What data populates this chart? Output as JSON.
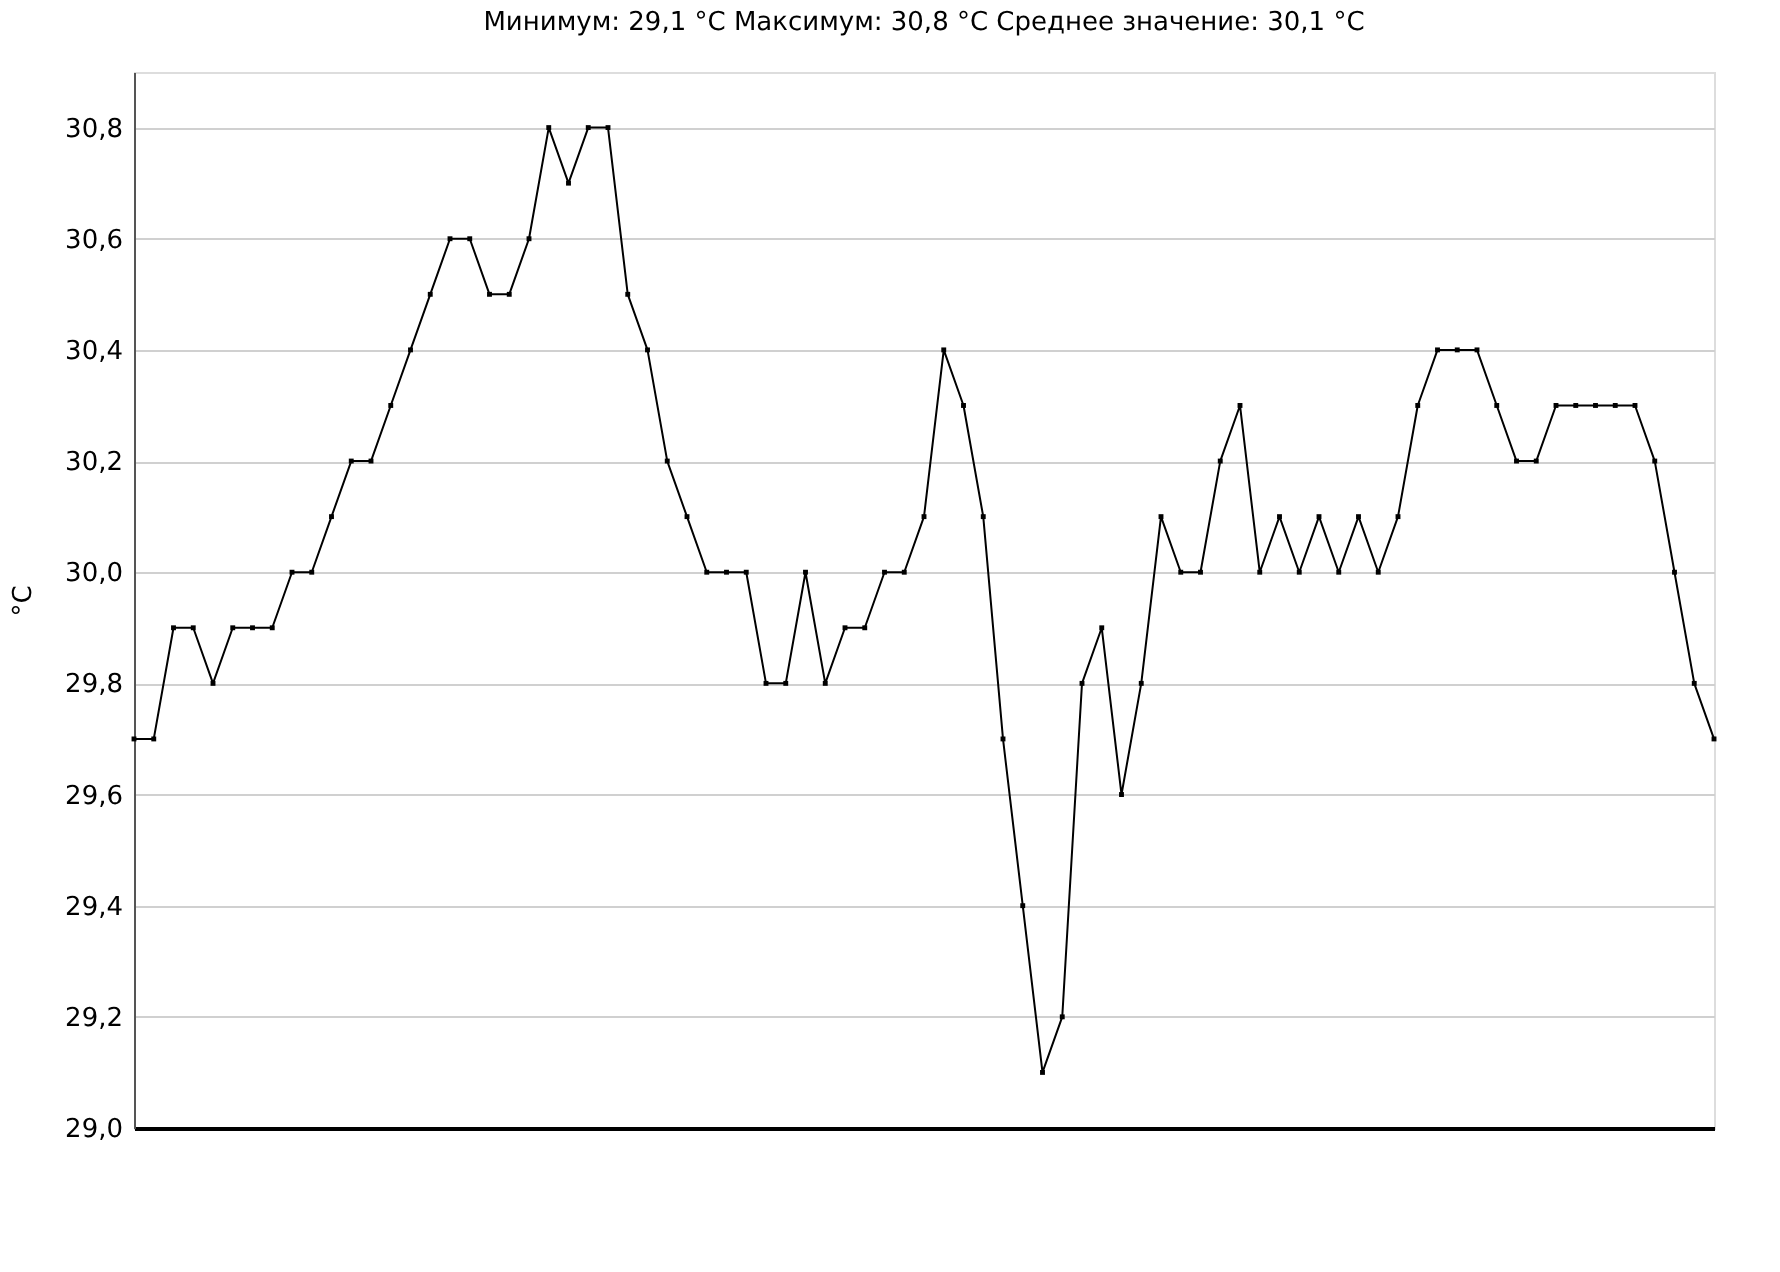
{
  "chart_data": {
    "type": "line",
    "title": "Минимум: 29,1 °C Максимум: 30,8 °C Среднее значение: 30,1 °C",
    "ylabel": "°C",
    "categories": [
      null,
      null,
      null,
      null,
      null,
      null,
      null,
      null,
      null,
      null,
      null,
      null,
      null,
      null,
      null,
      null,
      null,
      null,
      null,
      null,
      null,
      null,
      null,
      null,
      null,
      null,
      null,
      null,
      null,
      null,
      null,
      null,
      null,
      null,
      null,
      null,
      null,
      null,
      null,
      null,
      null,
      null,
      null,
      null,
      null,
      null,
      null,
      null,
      null,
      null,
      null,
      null,
      null,
      null,
      null,
      null,
      null,
      null,
      null,
      null,
      null,
      null,
      null,
      null,
      null,
      null,
      null,
      null,
      null,
      null,
      null,
      null,
      null,
      null,
      null,
      null,
      null,
      null,
      null,
      null,
      null
    ],
    "series": [
      {
        "color": "#000000",
        "values": [
          29.7,
          29.7,
          29.9,
          29.9,
          29.8,
          29.9,
          29.9,
          29.9,
          30.0,
          30.0,
          30.1,
          30.2,
          30.2,
          30.3,
          30.4,
          30.5,
          30.6,
          30.6,
          30.5,
          30.5,
          30.6,
          30.8,
          30.7,
          30.8,
          30.8,
          30.5,
          30.4,
          30.2,
          30.1,
          30.0,
          30.0,
          30.0,
          29.8,
          29.8,
          30.0,
          29.8,
          29.9,
          29.9,
          30.0,
          30.0,
          30.1,
          30.4,
          30.3,
          30.1,
          29.7,
          29.4,
          29.1,
          29.2,
          29.8,
          29.9,
          29.6,
          29.8,
          30.1,
          30.0,
          30.0,
          30.2,
          30.3,
          30.0,
          30.1,
          30.0,
          30.1,
          30.0,
          30.1,
          30.0,
          30.1,
          30.3,
          30.4,
          30.4,
          30.4,
          30.3,
          30.2,
          30.2,
          30.3,
          30.3,
          30.3,
          30.3,
          30.3,
          30.2,
          30.0,
          29.8,
          29.7
        ]
      }
    ],
    "ylim": [
      29.0,
      30.9
    ],
    "yticks": [
      {
        "value": 29.0,
        "label": "29,0"
      },
      {
        "value": 29.2,
        "label": "29,2"
      },
      {
        "value": 29.4,
        "label": "29,4"
      },
      {
        "value": 29.6,
        "label": "29,6"
      },
      {
        "value": 29.8,
        "label": "29,8"
      },
      {
        "value": 30.0,
        "label": "30,0"
      },
      {
        "value": 30.2,
        "label": "30,2"
      },
      {
        "value": 30.4,
        "label": "30,4"
      },
      {
        "value": 30.6,
        "label": "30,6"
      },
      {
        "value": 30.8,
        "label": "30,8"
      }
    ],
    "grid": "y",
    "legend": false,
    "marker": "square",
    "line_style": "solid",
    "tick_labels": "y"
  }
}
